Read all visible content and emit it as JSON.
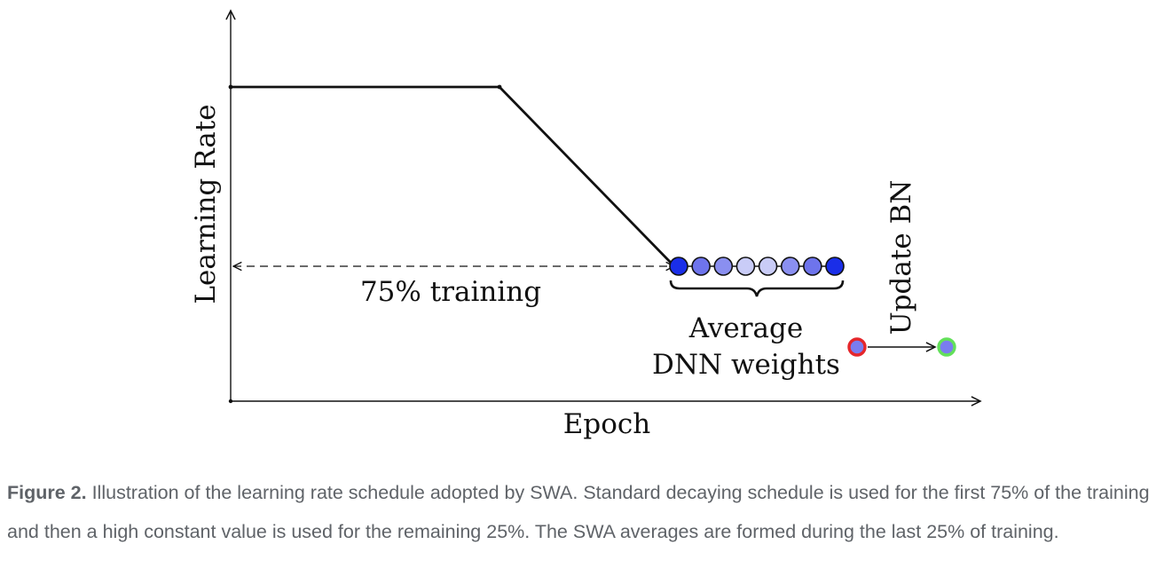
{
  "diagram": {
    "y_axis_label": "Learning Rate",
    "x_axis_label": "Epoch",
    "span_label": "75% training",
    "average_label_line1": "Average",
    "average_label_line2": "DNN weights",
    "update_label": "Update BN",
    "colors": {
      "line": "#111111",
      "weights": [
        "#1a2ee8",
        "#6e74ec",
        "#8a8ff0",
        "#c9ccf7",
        "#c9ccf7",
        "#8a8ff0",
        "#6e74ec",
        "#1a2ee8"
      ],
      "swa_fill": "#7a7cf0",
      "swa_ring": "#e5262b",
      "bn_ring": "#63e05a"
    }
  },
  "caption": {
    "label": "Figure 2.",
    "text": " Illustration of the learning rate schedule adopted by SWA. Standard decaying schedule is used for the first 75% of the training and then a high constant value is used for the remaining 25%. The SWA averages are formed during the last 25% of training."
  }
}
